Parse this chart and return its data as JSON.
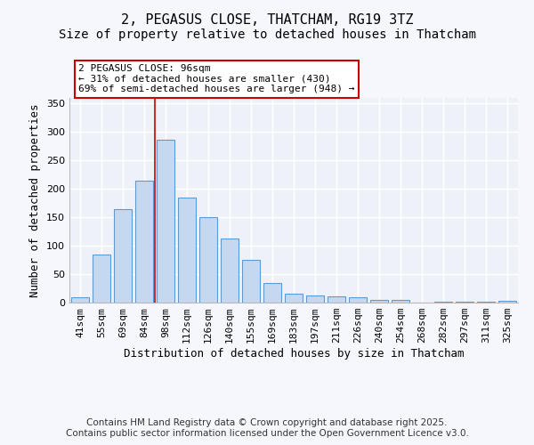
{
  "title_line1": "2, PEGASUS CLOSE, THATCHAM, RG19 3TZ",
  "title_line2": "Size of property relative to detached houses in Thatcham",
  "xlabel": "Distribution of detached houses by size in Thatcham",
  "ylabel": "Number of detached properties",
  "categories": [
    "41sqm",
    "55sqm",
    "69sqm",
    "84sqm",
    "98sqm",
    "112sqm",
    "126sqm",
    "140sqm",
    "155sqm",
    "169sqm",
    "183sqm",
    "197sqm",
    "211sqm",
    "226sqm",
    "240sqm",
    "254sqm",
    "268sqm",
    "282sqm",
    "297sqm",
    "311sqm",
    "325sqm"
  ],
  "values": [
    10,
    84,
    165,
    215,
    287,
    185,
    150,
    113,
    75,
    35,
    16,
    12,
    11,
    9,
    5,
    5,
    0,
    1,
    1,
    1,
    3
  ],
  "bar_color": "#c5d8f0",
  "bar_edge_color": "#5b9bd5",
  "red_line_index": 3,
  "annotation_text": "2 PEGASUS CLOSE: 96sqm\n← 31% of detached houses are smaller (430)\n69% of semi-detached houses are larger (948) →",
  "annotation_box_facecolor": "#ffffff",
  "annotation_box_edgecolor": "#cc0000",
  "ylim": [
    0,
    360
  ],
  "yticks": [
    0,
    50,
    100,
    150,
    200,
    250,
    300,
    350
  ],
  "plot_bgcolor": "#eef2f8",
  "fig_bgcolor": "#f5f7fc",
  "grid_color": "#ffffff",
  "title_fontsize": 11,
  "subtitle_fontsize": 10,
  "axis_label_fontsize": 9,
  "tick_fontsize": 8,
  "annot_fontsize": 8,
  "footer_fontsize": 7.5,
  "footer_line1": "Contains HM Land Registry data © Crown copyright and database right 2025.",
  "footer_line2": "Contains public sector information licensed under the Open Government Licence v3.0."
}
